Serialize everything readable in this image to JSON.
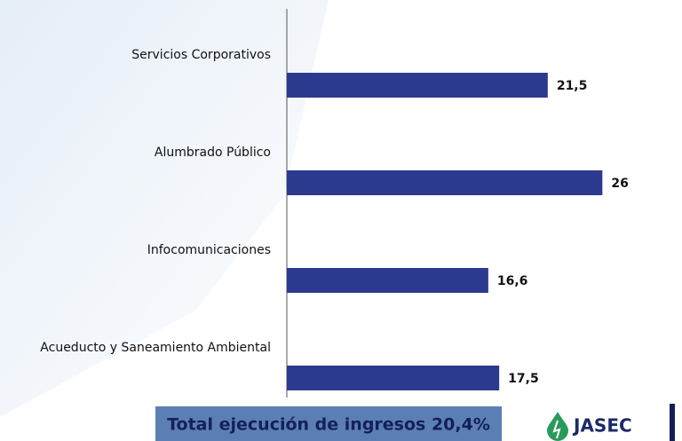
{
  "chart_data": {
    "type": "hbar",
    "categories": [
      "Servicios Corporativos",
      "Alumbrado Público",
      "Infocomunicaciones",
      "Acueducto y Saneamiento Ambiental"
    ],
    "values": [
      21.5,
      26,
      16.6,
      17.5
    ],
    "value_labels": [
      "21,5",
      "26",
      "16,6",
      "17,5"
    ],
    "color": "#2b3a8f",
    "xlim": [
      0,
      30
    ],
    "annotation": "Total ejecución de ingresos 20,4%",
    "logo_text": "JASEC"
  }
}
